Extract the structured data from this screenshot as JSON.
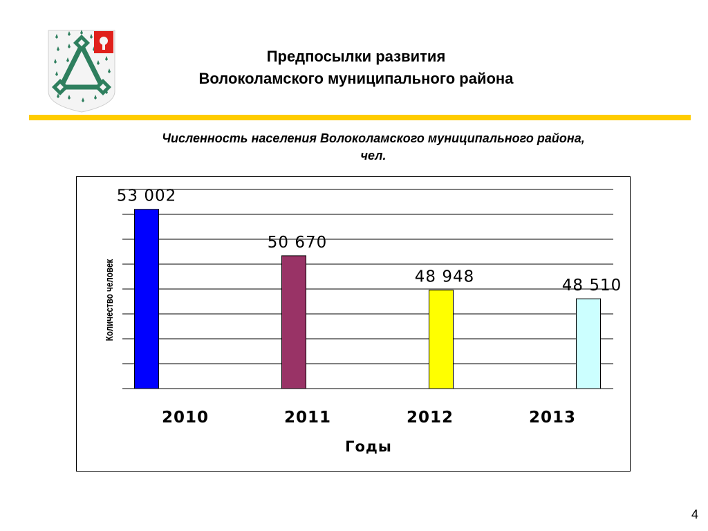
{
  "slide": {
    "title_line1": "Предпосылки развития",
    "title_line2": "Волоколамского муниципального района",
    "page_number": "4"
  },
  "colors": {
    "rule": "#FFCC00",
    "coat_green": "#2E7F5E",
    "coat_shield": "#F4F4F4",
    "emblem_red": "#E0201B"
  },
  "chart_data": {
    "type": "bar",
    "title": "Численность населения Волоколамского муниципального района,",
    "title_line2": "чел.",
    "categories": [
      "2010",
      "2011",
      "2012",
      "2013"
    ],
    "values": [
      53002,
      50670,
      48948,
      48510
    ],
    "value_labels": [
      "53 002",
      "50 670",
      "48 948",
      "48 510"
    ],
    "bar_colors": [
      "#0000FF",
      "#993366",
      "#FFFF00",
      "#CCFFFF"
    ],
    "xlabel": "Годы",
    "ylabel": "Количество человек",
    "ylim": [
      44000,
      54000
    ],
    "grid": true,
    "legend": "none",
    "tick_labels_shown": false
  }
}
